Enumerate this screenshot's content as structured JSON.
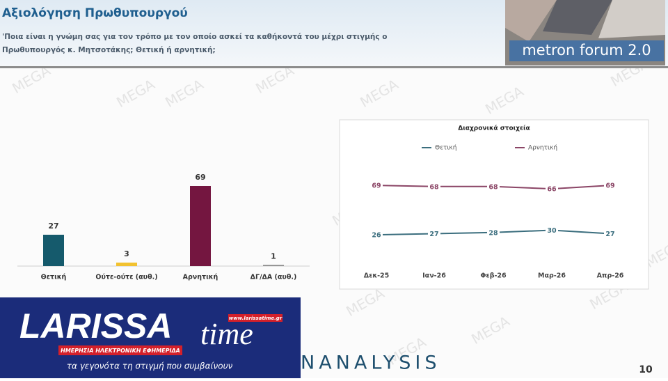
{
  "header": {
    "title": "Αξιολόγηση Πρωθυπουργού",
    "question_lines": [
      "'Ποια είναι η γνώμη σας για τον τρόπο με τον οποίο ασκεί τα καθήκοντά του μέχρι στιγμής ο",
      "Πρωθυπουργός κ. Μητσοτάκης; Θετική ή αρνητική;"
    ],
    "logo": "metron forum 2.0"
  },
  "watermark": "MEGA",
  "chart_data": [
    {
      "type": "bar",
      "categories": [
        "Θετική",
        "Ούτε-ούτε (αυθ.)",
        "Αρνητική",
        "ΔΓ/ΔΑ (αυθ.)"
      ],
      "values": [
        27,
        3,
        69,
        1
      ],
      "colors": [
        "#155a6c",
        "#f2c230",
        "#741640",
        "#8a8a8a"
      ]
    },
    {
      "type": "line",
      "title": "Διαχρονικά στοιχεία",
      "categories": [
        "Δεκ-25",
        "Ιαν-26",
        "Φεβ-26",
        "Μαρ-26",
        "Απρ-26"
      ],
      "series": [
        {
          "name": "Θετική",
          "color": "#3b6e7e",
          "values": [
            26,
            27,
            28,
            30,
            27
          ]
        },
        {
          "name": "Αρνητική",
          "color": "#8b4566",
          "values": [
            69,
            68,
            68,
            66,
            69
          ]
        }
      ],
      "legend": "top"
    }
  ],
  "footer": {
    "brand": "NANALYSIS",
    "page": "10"
  },
  "overlay": {
    "name_left": "LARISSA",
    "name_right": "time",
    "url": "www.larissatime.gr",
    "banner": "ΗΜΕΡΗΣΙΑ ΗΛΕΚΤΡΟΝΙΚΗ ΕΦΗΜΕΡΙΔΑ",
    "tagline": "τα γεγονότα τη στιγμή που συμβαίνουν"
  }
}
